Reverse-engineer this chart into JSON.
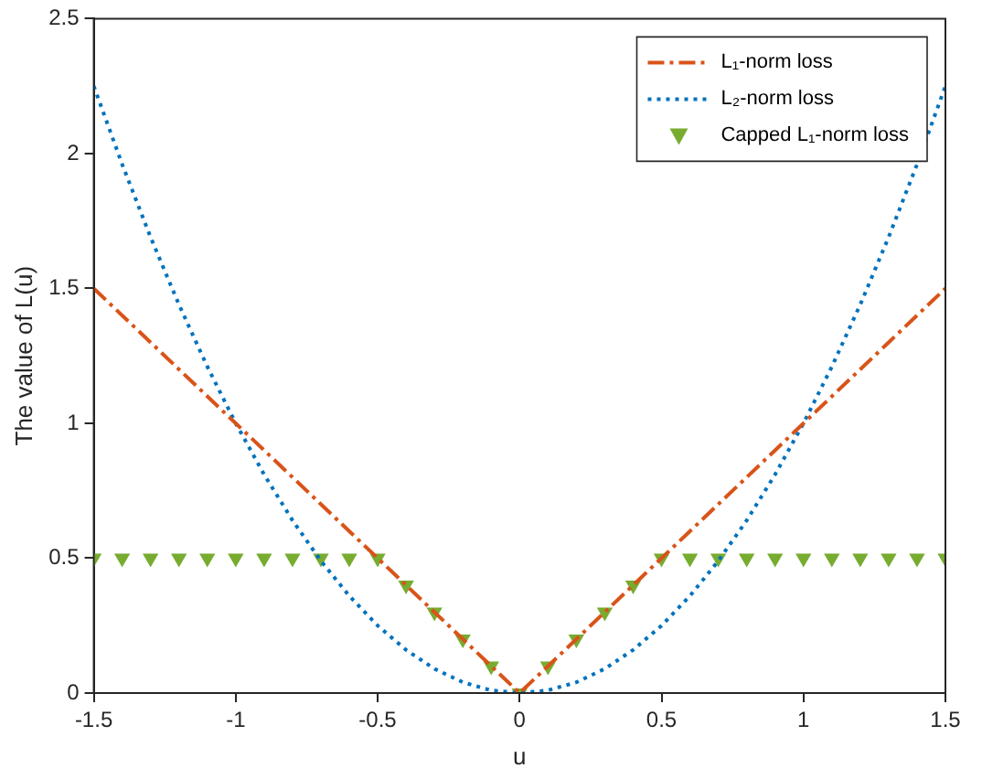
{
  "chart_data": {
    "type": "line",
    "xlabel": "u",
    "ylabel": "The value of L(u)",
    "xlim": [
      -1.5,
      1.5
    ],
    "xticks": [
      -1.5,
      -1,
      -0.5,
      0,
      0.5,
      1,
      1.5
    ],
    "ylim": [
      0,
      2.5
    ],
    "yticks": [
      0,
      0.5,
      1,
      1.5,
      2,
      2.5
    ],
    "grid": false,
    "legend": "top right",
    "x": [
      -1.5,
      -1.4,
      -1.3,
      -1.2,
      -1.1,
      -1,
      -0.9,
      -0.8,
      -0.7,
      -0.6,
      -0.5,
      -0.4,
      -0.3,
      -0.2,
      -0.1,
      0,
      0.1,
      0.2,
      0.3,
      0.4,
      0.5,
      0.6,
      0.7,
      0.8,
      0.9,
      1,
      1.1,
      1.2,
      1.3,
      1.4,
      1.5
    ],
    "series": [
      {
        "name": "L₁-norm loss",
        "line_style": "dashed",
        "marker": "none",
        "color": "#d95319",
        "values": [
          1.5,
          1.4,
          1.3,
          1.2,
          1.1,
          1,
          0.9,
          0.8,
          0.7,
          0.6,
          0.5,
          0.4,
          0.3,
          0.2,
          0.1,
          0,
          0.1,
          0.2,
          0.3,
          0.4,
          0.5,
          0.6,
          0.7,
          0.8,
          0.9,
          1,
          1.1,
          1.2,
          1.3,
          1.4,
          1.5
        ]
      },
      {
        "name": "L₂-norm loss",
        "line_style": "dotted",
        "marker": "none",
        "color": "#0072bd",
        "values": [
          2.25,
          1.96,
          1.69,
          1.44,
          1.21,
          1,
          0.81,
          0.64,
          0.49,
          0.36,
          0.25,
          0.16,
          0.09,
          0.04,
          0.01,
          0,
          0.01,
          0.04,
          0.09,
          0.16,
          0.25,
          0.36,
          0.49,
          0.64,
          0.81,
          1,
          1.21,
          1.44,
          1.69,
          1.96,
          2.25
        ]
      },
      {
        "name": "Capped L₁-norm loss",
        "type": "scatter",
        "marker": "triangle",
        "color": "#77ac30",
        "values": [
          0.5,
          0.5,
          0.5,
          0.5,
          0.5,
          0.5,
          0.5,
          0.5,
          0.5,
          0.5,
          0.5,
          0.4,
          0.3,
          0.2,
          0.1,
          0,
          0.1,
          0.2,
          0.3,
          0.4,
          0.5,
          0.5,
          0.5,
          0.5,
          0.5,
          0.5,
          0.5,
          0.5,
          0.5,
          0.5,
          0.5
        ]
      }
    ]
  }
}
